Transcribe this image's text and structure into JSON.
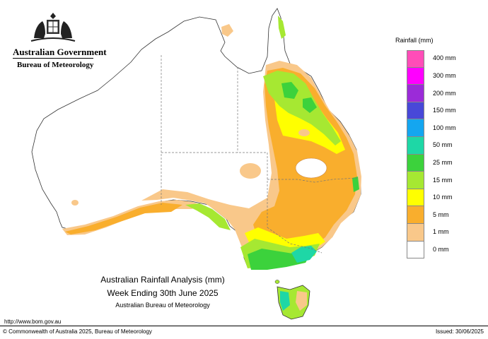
{
  "header": {
    "government": "Australian Government",
    "agency": "Bureau of Meteorology",
    "crest_icon": "coat-of-arms-icon"
  },
  "title": {
    "line1": "Australian Rainfall Analysis (mm)",
    "line2": "Week Ending 30th June 2025",
    "line3": "Australian Bureau of Meteorology"
  },
  "legend": {
    "title": "Rainfall (mm)",
    "bins": [
      {
        "label": "400 mm",
        "color": "#ff4db8"
      },
      {
        "label": "300 mm",
        "color": "#ff00ff"
      },
      {
        "label": "200 mm",
        "color": "#9b2bd8"
      },
      {
        "label": "150 mm",
        "color": "#4848d8"
      },
      {
        "label": "100 mm",
        "color": "#14a6f0"
      },
      {
        "label": "50 mm",
        "color": "#1ed7a6"
      },
      {
        "label": "25 mm",
        "color": "#3cd23c"
      },
      {
        "label": "15 mm",
        "color": "#a6e832"
      },
      {
        "label": "10 mm",
        "color": "#ffff00"
      },
      {
        "label": "5 mm",
        "color": "#f9ae2d"
      },
      {
        "label": "1 mm",
        "color": "#f9c88a"
      },
      {
        "label": "0 mm",
        "color": "#ffffff"
      }
    ]
  },
  "footer": {
    "url": "http://www.bom.gov.au",
    "copyright": "© Commonwealth of Australia 2025, Bureau of Meteorology",
    "issued": "Issued: 30/06/2025"
  }
}
